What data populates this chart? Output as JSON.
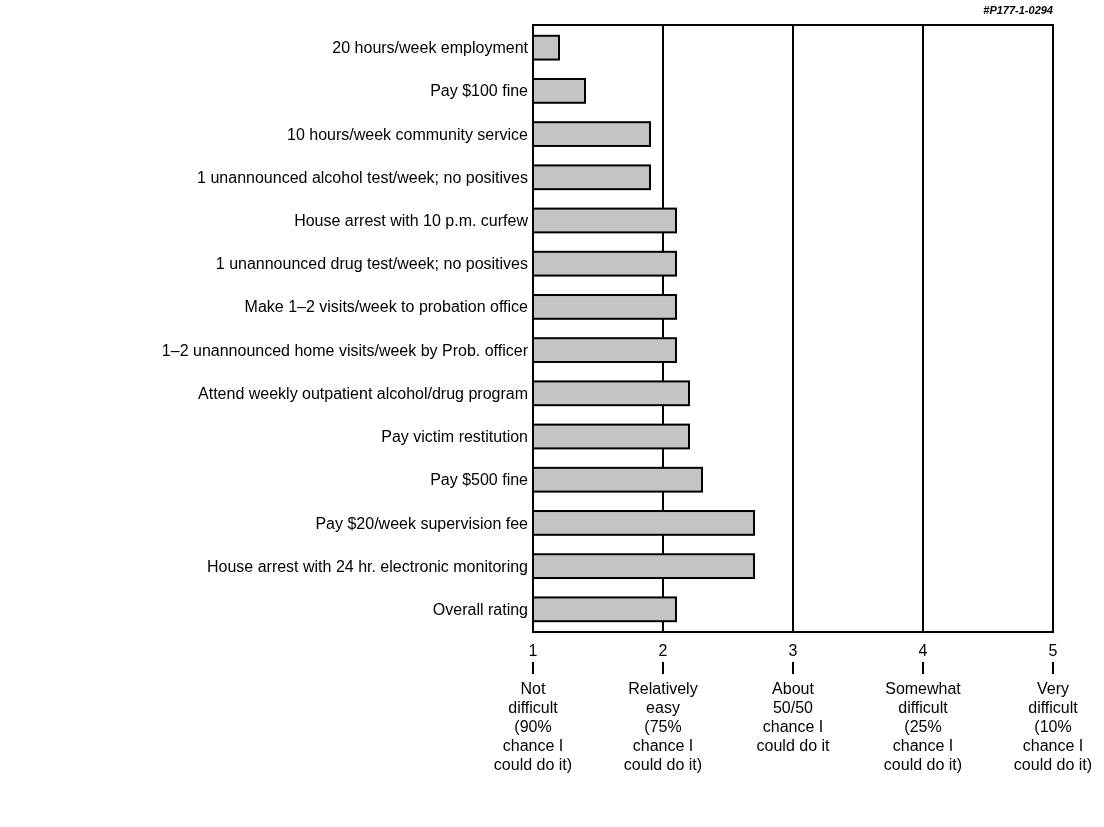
{
  "chart_data": {
    "type": "bar",
    "orientation": "horizontal",
    "categories": [
      "20 hours/week employment",
      "Pay $100 fine",
      "10 hours/week community service",
      "1 unannounced alcohol test/week; no positives",
      "House arrest with 10 p.m. curfew",
      "1 unannounced drug test/week; no positives",
      "Make 1–2 visits/week to probation office",
      "1–2 unannounced home visits/week by Prob. officer",
      "Attend weekly outpatient alcohol/drug program",
      "Pay victim restitution",
      "Pay $500 fine",
      "Pay $20/week supervision fee",
      "House arrest with 24 hr. electronic monitoring",
      "Overall rating"
    ],
    "values": [
      1.2,
      1.4,
      1.9,
      1.9,
      2.1,
      2.1,
      2.1,
      2.1,
      2.2,
      2.2,
      2.3,
      2.7,
      2.7,
      2.1
    ],
    "color": "#c4c4c4",
    "xlim": [
      1,
      5
    ],
    "xticks": [
      1,
      2,
      3,
      4,
      5
    ],
    "grid": "x",
    "annotations": [
      "#P177-1-0294",
      "Not\ndifficult\n(90%\nchance I\ncould do it)",
      "Relatively\neasy\n(75%\nchance I\ncould do it)",
      "About\n50/50\nchance I\ncould do it",
      "Somewhat\ndifficult\n(25%\nchance I\ncould do it)",
      "Very\ndifficult\n(10%\nchance I\ncould do it)"
    ]
  }
}
